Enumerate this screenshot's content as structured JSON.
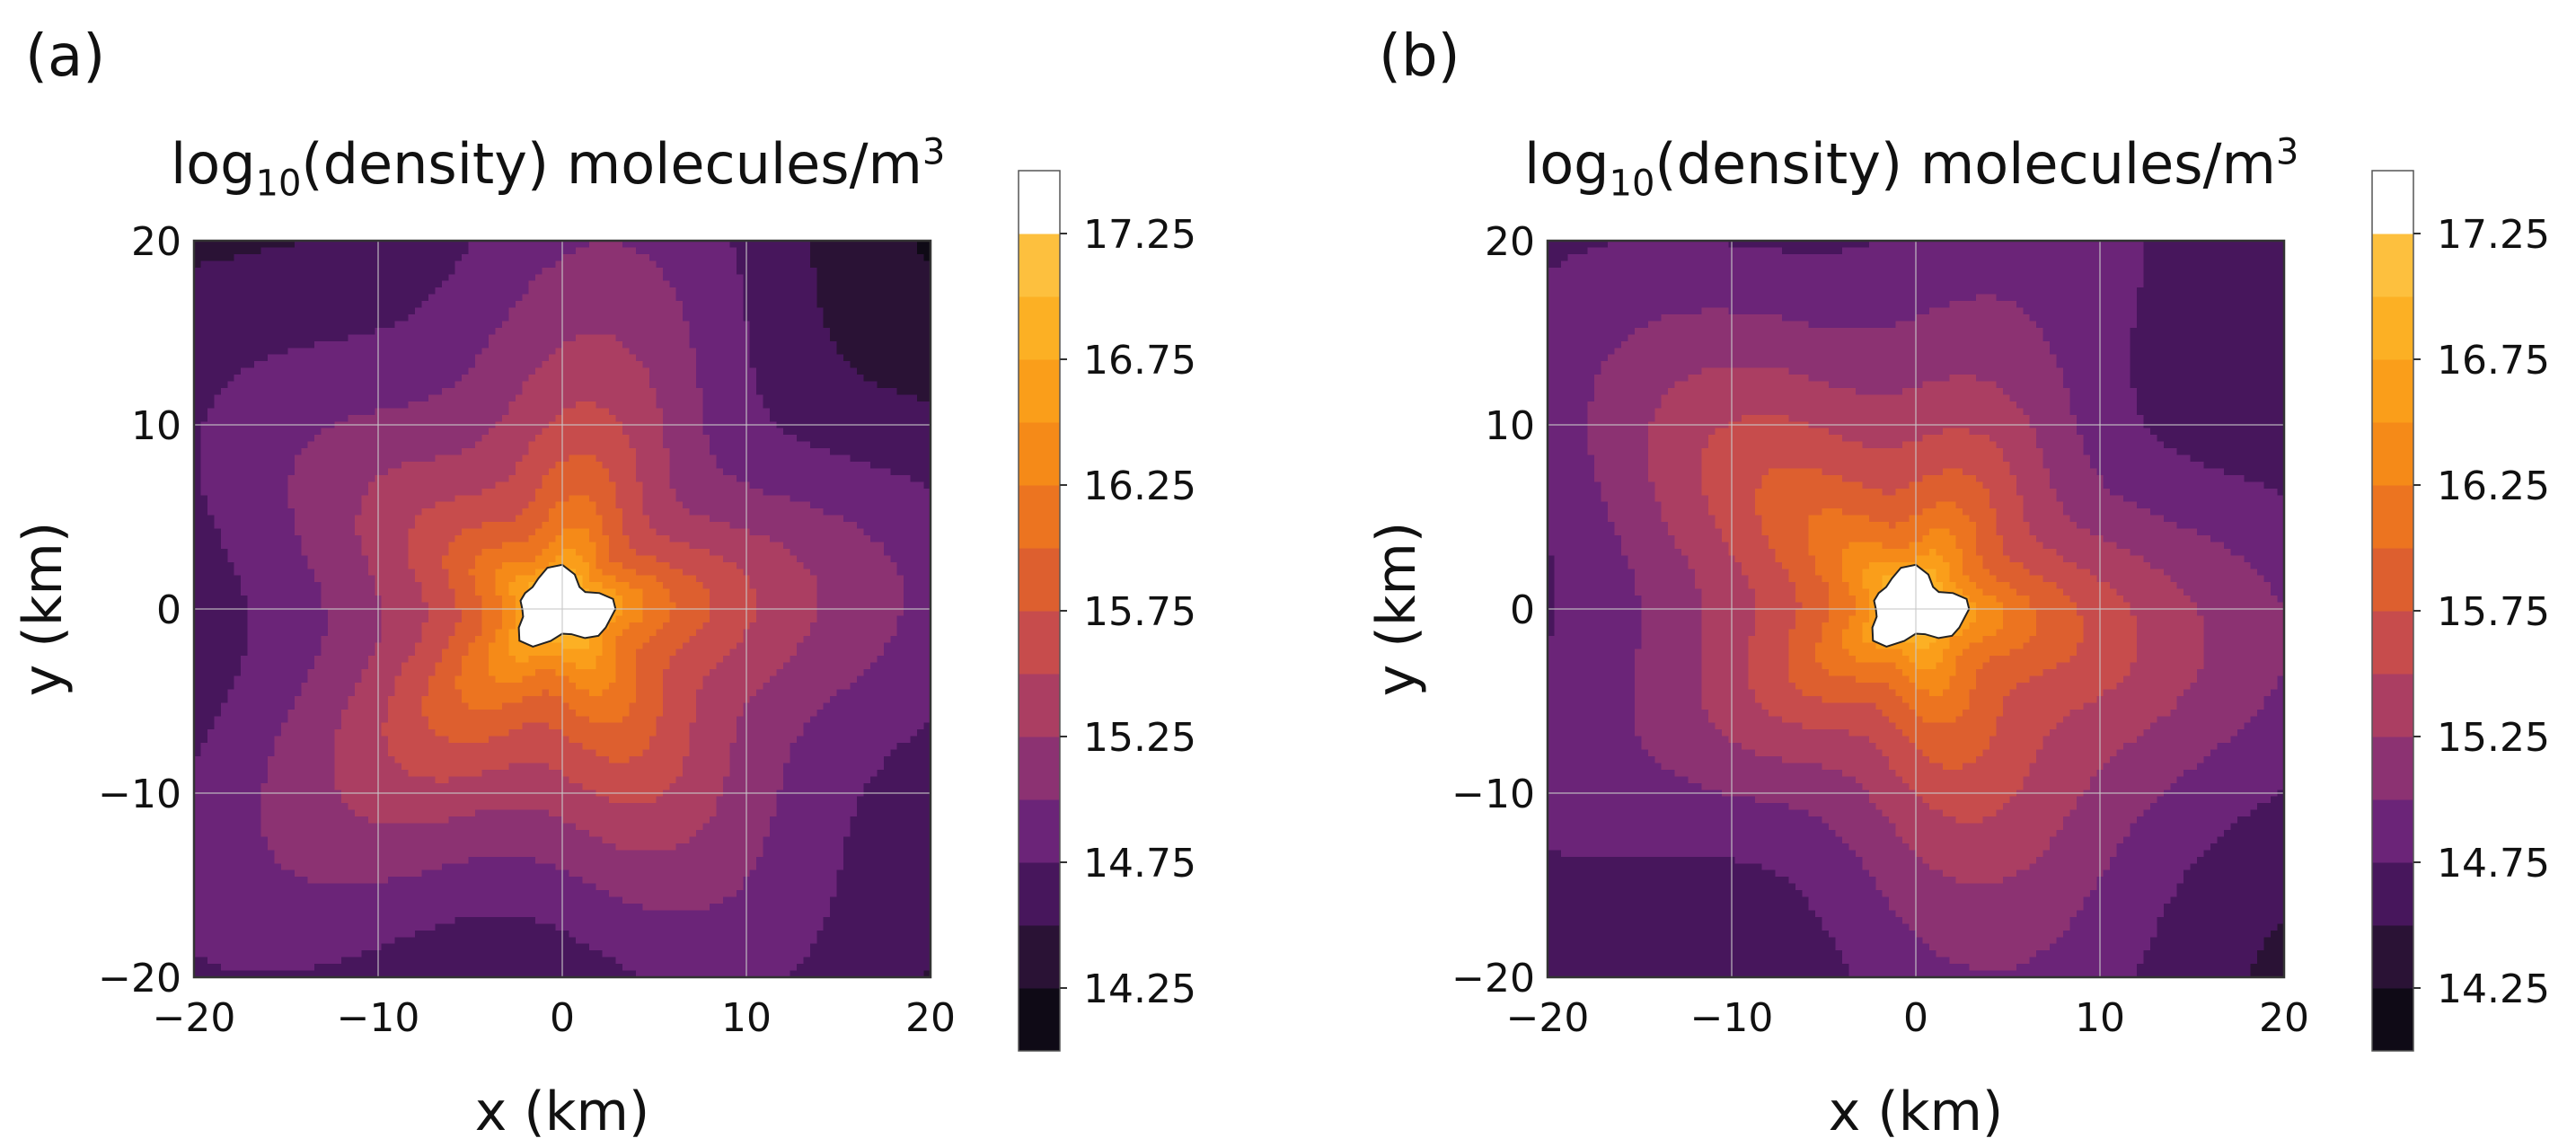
{
  "chart_data": [
    {
      "type": "heatmap",
      "panel_label": "(a)",
      "title": "log10(density) molecules/m3",
      "title_parts": {
        "pre": "log",
        "sub": "10",
        "mid": "(density) molecules/m",
        "sup": "3"
      },
      "xlabel": "x (km)",
      "ylabel": "y (km)",
      "xlim": [
        -20,
        20
      ],
      "ylim": [
        -20,
        20
      ],
      "x_ticks": [
        -20,
        -10,
        0,
        10,
        20
      ],
      "y_ticks": [
        -20,
        -10,
        0,
        10,
        20
      ],
      "x_tick_labels": [
        "−20",
        "−10",
        "0",
        "10",
        "20"
      ],
      "y_tick_labels": [
        "−20",
        "−10",
        "0",
        "10",
        "20"
      ],
      "grid": true,
      "nucleus_center": [
        0,
        0
      ],
      "colorbar": {
        "levels": [
          14.0,
          14.25,
          14.5,
          14.75,
          15.0,
          15.25,
          15.5,
          15.75,
          16.0,
          16.25,
          16.5,
          16.75,
          17.0,
          17.25,
          17.5
        ],
        "tick_values": [
          14.25,
          14.75,
          15.25,
          15.75,
          16.25,
          16.75,
          17.25
        ],
        "tick_labels": [
          "14.25",
          "14.75",
          "15.25",
          "15.75",
          "16.25",
          "16.75",
          "17.25"
        ],
        "colors": [
          "#0f0a16",
          "#2a1235",
          "#47165c",
          "#6b2478",
          "#8c3272",
          "#ab3e62",
          "#c74c4c",
          "#dd5f2f",
          "#ec7420",
          "#f58a18",
          "#fa9e1a",
          "#fcb024",
          "#fdc03e",
          "#ffffff"
        ]
      }
    },
    {
      "type": "heatmap",
      "panel_label": "(b)",
      "title": "log10(density) molecules/m3",
      "title_parts": {
        "pre": "log",
        "sub": "10",
        "mid": "(density) molecules/m",
        "sup": "3"
      },
      "xlabel": "x (km)",
      "ylabel": "y (km)",
      "xlim": [
        -20,
        20
      ],
      "ylim": [
        -20,
        20
      ],
      "x_ticks": [
        -20,
        -10,
        0,
        10,
        20
      ],
      "y_ticks": [
        -20,
        -10,
        0,
        10,
        20
      ],
      "x_tick_labels": [
        "−20",
        "−10",
        "0",
        "10",
        "20"
      ],
      "y_tick_labels": [
        "−20",
        "−10",
        "0",
        "10",
        "20"
      ],
      "grid": true,
      "nucleus_center": [
        0,
        0
      ],
      "colorbar": {
        "levels": [
          14.0,
          14.25,
          14.5,
          14.75,
          15.0,
          15.25,
          15.5,
          15.75,
          16.0,
          16.25,
          16.5,
          16.75,
          17.0,
          17.25,
          17.5
        ],
        "tick_values": [
          14.25,
          14.75,
          15.25,
          15.75,
          16.25,
          16.75,
          17.25
        ],
        "tick_labels": [
          "14.25",
          "14.75",
          "15.25",
          "15.75",
          "16.25",
          "16.75",
          "17.25"
        ],
        "colors": [
          "#0f0a16",
          "#2a1235",
          "#47165c",
          "#6b2478",
          "#8c3272",
          "#ab3e62",
          "#c74c4c",
          "#dd5f2f",
          "#ec7420",
          "#f58a18",
          "#fa9e1a",
          "#fcb024",
          "#fdc03e",
          "#ffffff"
        ]
      }
    }
  ]
}
